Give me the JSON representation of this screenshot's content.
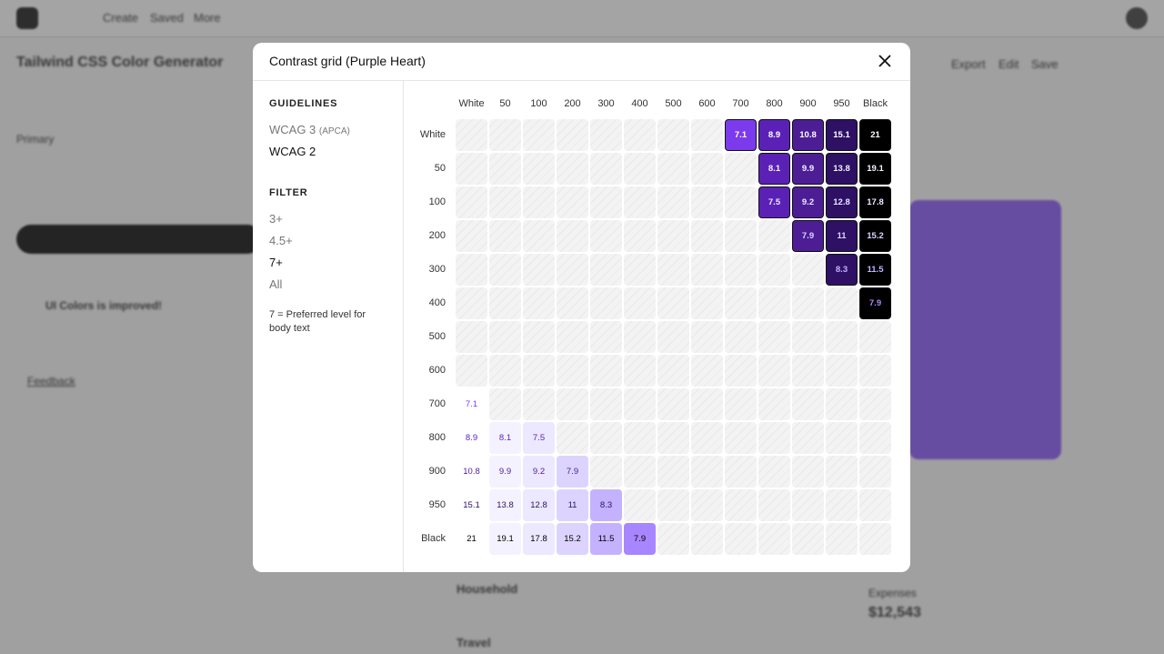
{
  "background": {
    "nav": [
      "Create",
      "Saved",
      "More"
    ],
    "heading": "Tailwind CSS Color Generator",
    "primary_label": "Primary",
    "notice_title": "UI Colors is improved!",
    "feedback": "Feedback",
    "actions": [
      "Export",
      "Edit",
      "Save"
    ],
    "list": [
      "Household",
      "Travel"
    ],
    "expenses": "Expenses",
    "expenses_value": "$12,543"
  },
  "modal": {
    "title": "Contrast grid (Purple Heart)",
    "guidelines": {
      "heading": "GUIDELINES",
      "options": [
        {
          "label": "WCAG 3",
          "note": "(APCA)"
        },
        {
          "label": "WCAG 2"
        }
      ],
      "selected": 1
    },
    "filter": {
      "heading": "FILTER",
      "options": [
        "3+",
        "4.5+",
        "7+",
        "All"
      ],
      "selected": 2,
      "note": "7 = Preferred level for body text"
    },
    "grid": {
      "labels": [
        "White",
        "50",
        "100",
        "200",
        "300",
        "400",
        "500",
        "600",
        "700",
        "800",
        "900",
        "950",
        "Black"
      ],
      "colors": [
        "#ffffff",
        "#f5f2ff",
        "#ece8ff",
        "#dcd4ff",
        "#c4b2ff",
        "#a886ff",
        "#9055fd",
        "#8232f5",
        "#7c3aed",
        "#5b21b6",
        "#4c1d95",
        "#2e1065",
        "#000000"
      ],
      "rows": [
        [
          null,
          null,
          null,
          null,
          null,
          null,
          null,
          null,
          7.1,
          8.9,
          10.8,
          15.1,
          21
        ],
        [
          null,
          null,
          null,
          null,
          null,
          null,
          null,
          null,
          null,
          8.1,
          9.9,
          13.8,
          19.1
        ],
        [
          null,
          null,
          null,
          null,
          null,
          null,
          null,
          null,
          null,
          7.5,
          9.2,
          12.8,
          17.8
        ],
        [
          null,
          null,
          null,
          null,
          null,
          null,
          null,
          null,
          null,
          null,
          7.9,
          11,
          15.2
        ],
        [
          null,
          null,
          null,
          null,
          null,
          null,
          null,
          null,
          null,
          null,
          null,
          8.3,
          11.5
        ],
        [
          null,
          null,
          null,
          null,
          null,
          null,
          null,
          null,
          null,
          null,
          null,
          null,
          7.9
        ],
        [
          null,
          null,
          null,
          null,
          null,
          null,
          null,
          null,
          null,
          null,
          null,
          null,
          null
        ],
        [
          null,
          null,
          null,
          null,
          null,
          null,
          null,
          null,
          null,
          null,
          null,
          null,
          null
        ],
        [
          7.1,
          null,
          null,
          null,
          null,
          null,
          null,
          null,
          null,
          null,
          null,
          null,
          null
        ],
        [
          8.9,
          8.1,
          7.5,
          null,
          null,
          null,
          null,
          null,
          null,
          null,
          null,
          null,
          null
        ],
        [
          10.8,
          9.9,
          9.2,
          7.9,
          null,
          null,
          null,
          null,
          null,
          null,
          null,
          null,
          null
        ],
        [
          15.1,
          13.8,
          12.8,
          11,
          8.3,
          null,
          null,
          null,
          null,
          null,
          null,
          null,
          null
        ],
        [
          21,
          19.1,
          17.8,
          15.2,
          11.5,
          7.9,
          null,
          null,
          null,
          null,
          null,
          null,
          null
        ]
      ]
    }
  }
}
